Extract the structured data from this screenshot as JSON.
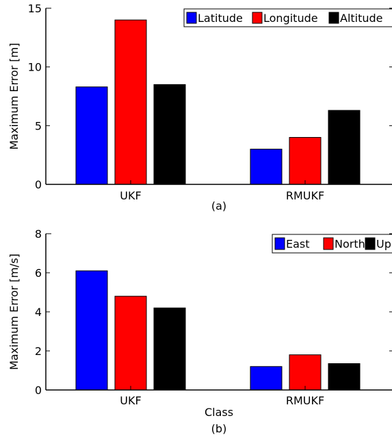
{
  "chart_data": [
    {
      "type": "bar",
      "categories": [
        "UKF",
        "RMUKF"
      ],
      "series": [
        {
          "name": "Latitude",
          "color": "#0000ff",
          "values": [
            8.3,
            3.0
          ]
        },
        {
          "name": "Longitude",
          "color": "#ff0000",
          "values": [
            14.0,
            4.0
          ]
        },
        {
          "name": "Altitude",
          "color": "#000000",
          "values": [
            8.5,
            6.3
          ]
        }
      ],
      "ylabel": "Maximum Error [m]",
      "xlabel": "",
      "caption": "(a)",
      "ylim": [
        0,
        15
      ],
      "yticks": [
        0,
        5,
        10,
        15
      ],
      "legend_position": "top-right",
      "grid": false
    },
    {
      "type": "bar",
      "categories": [
        "UKF",
        "RMUKF"
      ],
      "series": [
        {
          "name": "East",
          "color": "#0000ff",
          "values": [
            6.1,
            1.2
          ]
        },
        {
          "name": "North",
          "color": "#ff0000",
          "values": [
            4.8,
            1.8
          ]
        },
        {
          "name": "Up",
          "color": "#000000",
          "values": [
            4.2,
            1.35
          ]
        }
      ],
      "ylabel": "Maximum Error [m/s]",
      "xlabel": "Class",
      "caption": "(b)",
      "ylim": [
        0,
        8
      ],
      "yticks": [
        0,
        2,
        4,
        6,
        8
      ],
      "legend_position": "top-right",
      "grid": false
    }
  ]
}
